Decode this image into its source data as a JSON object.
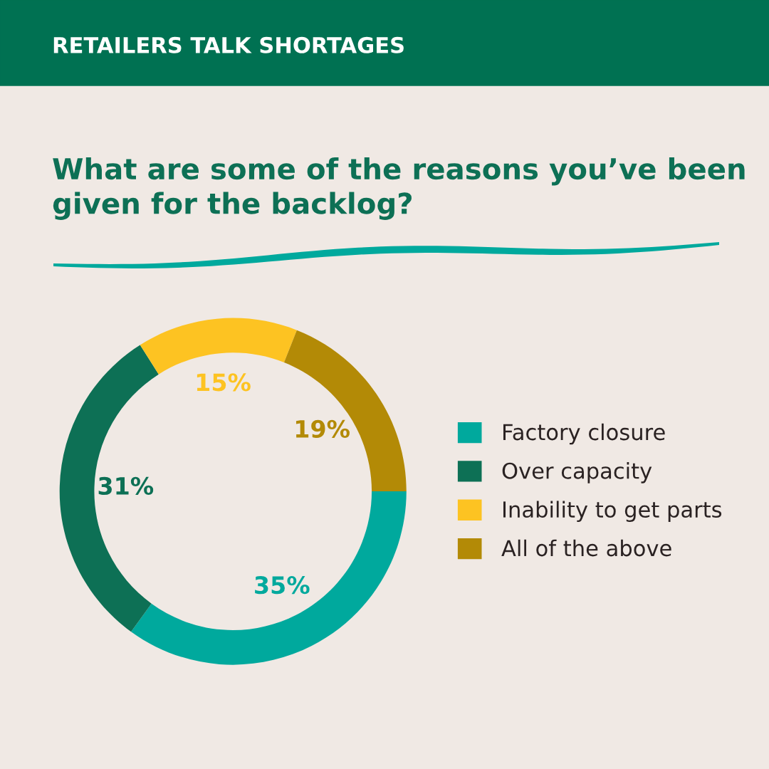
{
  "chart_data": {
    "type": "donut",
    "title": "RETAILERS TALK SHORTAGES",
    "subtitle": "What are some of the reasons you’ve been given for the backlog?",
    "categories": [
      "Factory closure",
      "Over capacity",
      "Inability to get parts",
      "All of the above"
    ],
    "values": [
      35,
      31,
      15,
      19
    ],
    "value_labels": [
      "35%",
      "31%",
      "15%",
      "19%"
    ],
    "colors": [
      "#00a99d",
      "#0d7055",
      "#fdc322",
      "#b38a06"
    ],
    "legend": "right"
  }
}
